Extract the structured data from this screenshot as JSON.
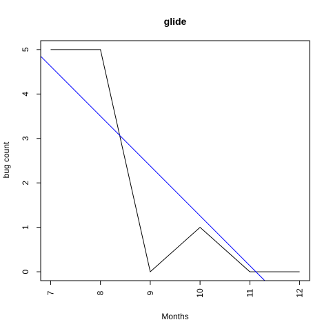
{
  "chart_data": {
    "type": "line",
    "title": "glide",
    "xlabel": "Months",
    "ylabel": "bug count",
    "x": [
      7,
      8,
      9,
      10,
      11,
      12
    ],
    "series": [
      {
        "values": [
          5,
          5,
          0,
          1,
          0,
          0
        ],
        "color": "#000000"
      },
      {
        "kind": "trend",
        "endpoints": {
          "x": [
            6.8,
            11.3
          ],
          "y": [
            4.85,
            -0.2
          ]
        },
        "color": "#0000ff"
      }
    ],
    "xlim": [
      6.8,
      12.2
    ],
    "ylim": [
      -0.2,
      5.2
    ],
    "xticks": [
      7,
      8,
      9,
      10,
      11,
      12
    ],
    "yticks": [
      0,
      1,
      2,
      3,
      4,
      5
    ],
    "grid": false,
    "legend": "none"
  }
}
